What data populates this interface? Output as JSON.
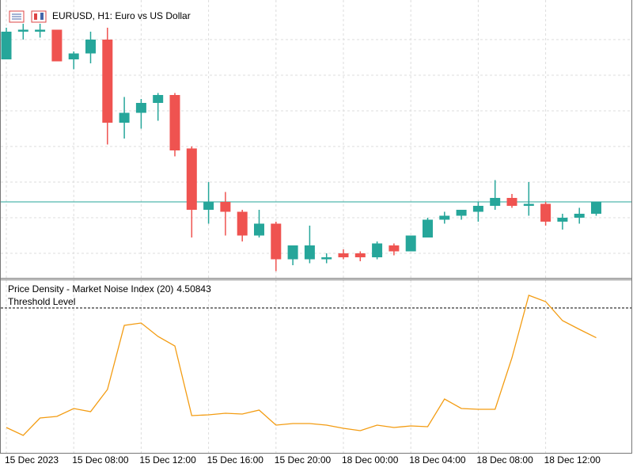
{
  "chart_data": [
    {
      "type": "candlestick",
      "title": "EURUSD, H1:  Euro vs US Dollar",
      "categories": [
        "15 Dec 2023",
        null,
        null,
        null,
        "15 Dec 08:00",
        null,
        null,
        null,
        "15 Dec 12:00",
        null,
        null,
        null,
        "15 Dec 16:00",
        null,
        null,
        null,
        "15 Dec 20:00",
        null,
        null,
        null,
        "18 Dec 00:00",
        null,
        null,
        null,
        "18 Dec 04:00",
        null,
        null,
        null,
        "18 Dec 08:00",
        null,
        null,
        null,
        "18 Dec 12:00",
        null,
        null,
        null
      ],
      "open": [
        1.0986,
        1.1,
        1.1,
        1.1001,
        1.0986,
        1.0989,
        1.0996,
        1.0954,
        1.0959,
        1.0964,
        1.0968,
        1.0941,
        1.091,
        1.0914,
        1.0909,
        1.0897,
        1.0903,
        1.0885,
        1.0885,
        1.0885,
        1.0888,
        1.0888,
        1.0886,
        1.0892,
        1.0889,
        1.0896,
        1.0905,
        1.0907,
        1.0909,
        1.0912,
        1.0916,
        1.0912,
        1.0913,
        1.0904,
        1.0906,
        1.0908
      ],
      "high": [
        1.1002,
        1.1004,
        1.1004,
        1.1001,
        1.099,
        1.1,
        1.1002,
        1.0967,
        1.0966,
        1.0969,
        1.0969,
        1.0942,
        1.0924,
        1.0919,
        1.091,
        1.091,
        1.0904,
        1.0892,
        1.0902,
        1.0888,
        1.089,
        1.0889,
        1.0894,
        1.0893,
        1.0897,
        1.0906,
        1.0909,
        1.091,
        1.0914,
        1.0925,
        1.0918,
        1.0924,
        1.0914,
        1.0908,
        1.0911,
        1.0914
      ],
      "low": [
        1.0986,
        1.0996,
        1.0997,
        1.0985,
        1.0981,
        1.0984,
        1.0943,
        1.0946,
        1.0951,
        1.0955,
        1.0937,
        1.0896,
        1.0903,
        1.0897,
        1.0894,
        1.0896,
        1.0879,
        1.0882,
        1.0883,
        1.0883,
        1.0885,
        1.0884,
        1.0885,
        1.0887,
        1.0889,
        1.0896,
        1.0903,
        1.0905,
        1.0904,
        1.091,
        1.0911,
        1.0907,
        1.0902,
        1.09,
        1.0903,
        1.0907
      ],
      "close": [
        1.1,
        1.1001,
        1.1001,
        1.0985,
        1.0989,
        1.0996,
        1.0954,
        1.0959,
        1.0964,
        1.0968,
        1.094,
        1.091,
        1.0914,
        1.0909,
        1.0897,
        1.0903,
        1.0885,
        1.0892,
        1.0892,
        1.0886,
        1.0886,
        1.0886,
        1.0893,
        1.0889,
        1.0897,
        1.0905,
        1.0907,
        1.091,
        1.0912,
        1.0916,
        1.0912,
        1.0913,
        1.0904,
        1.0906,
        1.0908,
        1.0914
      ],
      "up_color": "#26a69a",
      "down_color": "#ef5350",
      "price_line": 1.0914,
      "ylim": [
        1.0876,
        1.1014
      ],
      "yticks": [
        1.0996,
        1.0978,
        1.096,
        1.0942,
        1.0924,
        1.0906,
        1.0888
      ],
      "grid": true
    },
    {
      "type": "line",
      "title": "Price Density - Market Noise Index (20)",
      "values": [
        2.24,
        2.04,
        2.48,
        2.52,
        2.72,
        2.64,
        3.2,
        4.82,
        4.88,
        4.54,
        4.3,
        2.54,
        2.56,
        2.6,
        2.58,
        2.68,
        2.3,
        2.34,
        2.34,
        2.3,
        2.22,
        2.16,
        2.3,
        2.24,
        2.28,
        2.26,
        2.96,
        2.72,
        2.7,
        2.7,
        4.0,
        5.58,
        5.42,
        4.94,
        4.72,
        4.50843
      ],
      "color": "#f39c12",
      "threshold": 5.26,
      "threshold_label": "Threshold Level",
      "ylim": [
        1.64,
        5.94
      ]
    }
  ]
}
